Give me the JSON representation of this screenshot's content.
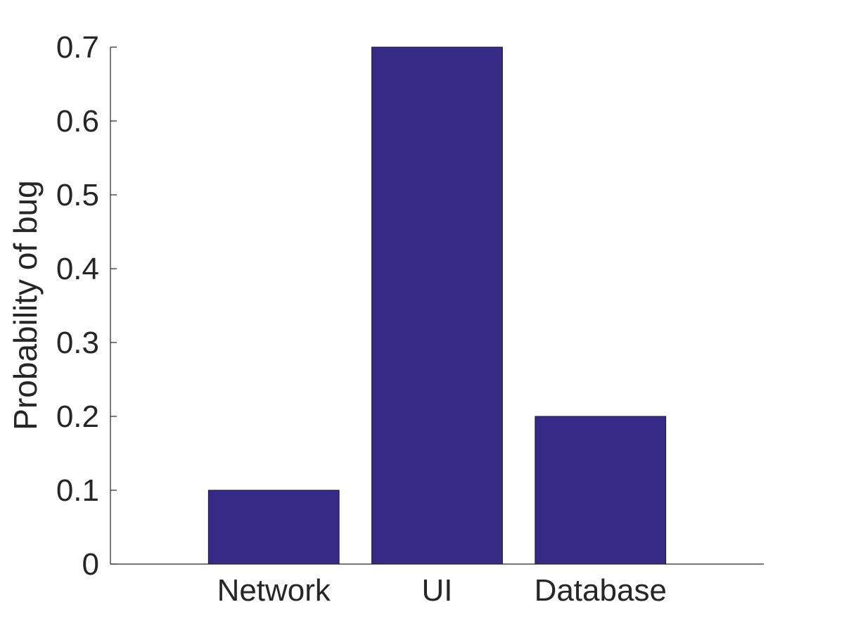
{
  "chart_data": {
    "type": "bar",
    "title": "",
    "xlabel": "",
    "ylabel": "Probability of bug",
    "categories": [
      "Network",
      "UI",
      "Database"
    ],
    "values": [
      0.1,
      0.7,
      0.2
    ],
    "ylim": [
      0,
      0.7
    ],
    "yticks": [
      0,
      0.1,
      0.2,
      0.3,
      0.4,
      0.5,
      0.6,
      0.7
    ],
    "ytick_labels": [
      "0",
      "0.1",
      "0.2",
      "0.3",
      "0.4",
      "0.5",
      "0.6",
      "0.7"
    ],
    "bar_color": "#352a86",
    "grid": false,
    "legend": "none"
  }
}
